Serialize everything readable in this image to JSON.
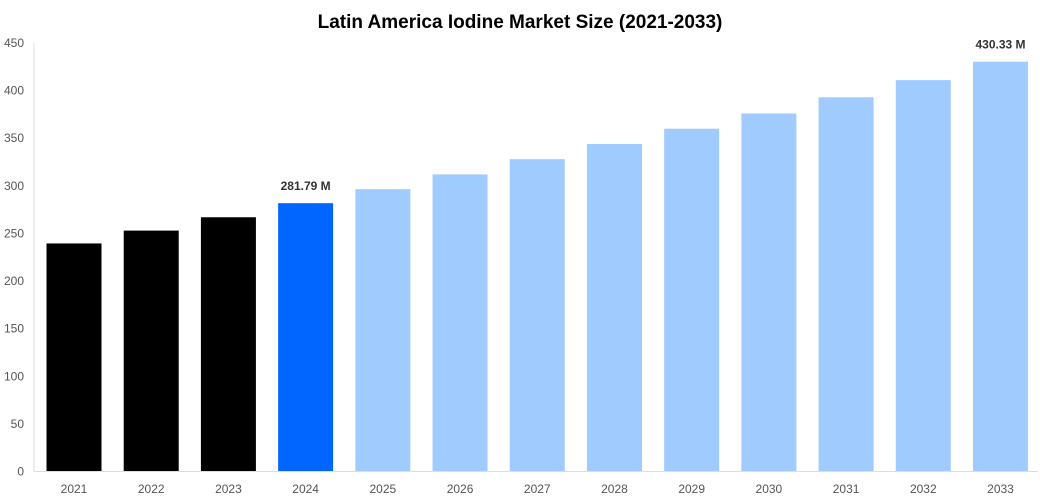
{
  "chart_data": {
    "type": "bar",
    "title": "Latin America Iodine Market Size (2021-2033)",
    "xlabel": "",
    "ylabel": "",
    "categories": [
      "2021",
      "2022",
      "2023",
      "2024",
      "2025",
      "2026",
      "2027",
      "2028",
      "2029",
      "2030",
      "2031",
      "2032",
      "2033"
    ],
    "values": [
      239.5,
      253,
      267,
      281.79,
      296.5,
      312,
      328,
      344,
      360,
      376,
      393,
      411,
      430.33
    ],
    "data_labels": {
      "3": "281.79 M",
      "12": "430.33 M"
    },
    "ylim": [
      0,
      450
    ],
    "yticks": [
      0,
      50,
      100,
      150,
      200,
      250,
      300,
      350,
      400,
      450
    ],
    "grid": false,
    "legend": "none",
    "colors": {
      "historical": "#000000",
      "base_year": "#0066ff",
      "forecast": "#a0cbff"
    },
    "bar_color_groups": [
      "historical",
      "historical",
      "historical",
      "base_year",
      "forecast",
      "forecast",
      "forecast",
      "forecast",
      "forecast",
      "forecast",
      "forecast",
      "forecast",
      "forecast"
    ]
  }
}
